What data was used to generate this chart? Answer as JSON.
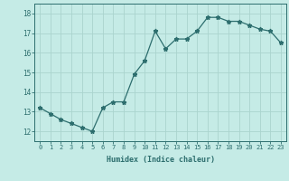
{
  "xlabel": "Humidex (Indice chaleur)",
  "x": [
    0,
    1,
    2,
    3,
    4,
    5,
    6,
    7,
    8,
    9,
    10,
    11,
    12,
    13,
    14,
    15,
    16,
    17,
    18,
    19,
    20,
    21,
    22,
    23
  ],
  "y": [
    13.2,
    12.9,
    12.6,
    12.4,
    12.2,
    12.0,
    13.2,
    13.5,
    13.5,
    14.9,
    15.6,
    17.1,
    16.2,
    16.7,
    16.7,
    17.1,
    17.8,
    17.8,
    17.6,
    17.6,
    17.4,
    17.2,
    17.1,
    16.5
  ],
  "line_color": "#2d6e6e",
  "bg_color": "#c5ebe6",
  "grid_color": "#aad4ce",
  "text_color": "#2d6e6e",
  "ylim": [
    11.5,
    18.5
  ],
  "yticks": [
    12,
    13,
    14,
    15,
    16,
    17,
    18
  ],
  "xticks": [
    0,
    1,
    2,
    3,
    4,
    5,
    6,
    7,
    8,
    9,
    10,
    11,
    12,
    13,
    14,
    15,
    16,
    17,
    18,
    19,
    20,
    21,
    22,
    23
  ]
}
